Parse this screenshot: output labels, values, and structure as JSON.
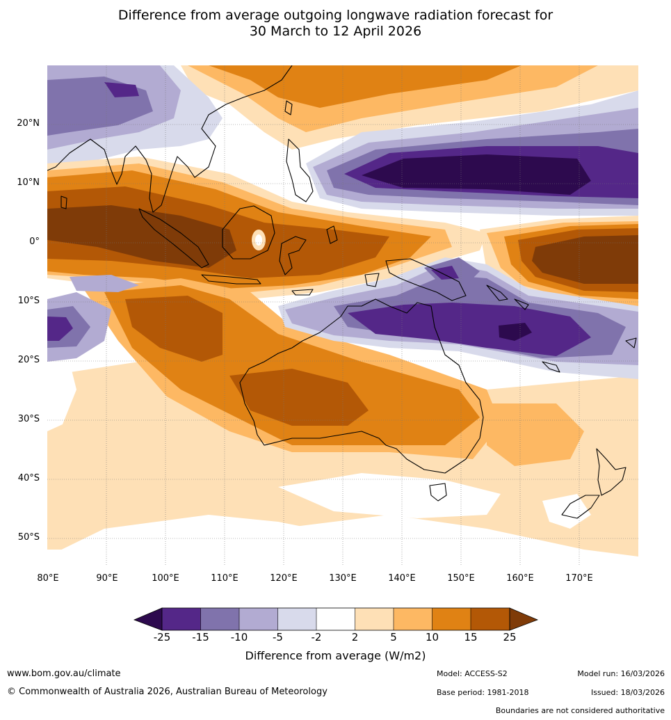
{
  "title": {
    "line1": "Difference from average outgoing longwave radiation forecast for",
    "line2": "30 March to 12 April 2026"
  },
  "axes": {
    "lat_labels": [
      "20°N",
      "10°N",
      "0°",
      "10°S",
      "20°S",
      "30°S",
      "40°S",
      "50°S"
    ],
    "lon_labels": [
      "80°E",
      "90°E",
      "100°E",
      "110°E",
      "120°E",
      "130°E",
      "140°E",
      "150°E",
      "160°E",
      "170°E"
    ]
  },
  "colorbar": {
    "ticks": [
      "-25",
      "-15",
      "-10",
      "-5",
      "-2",
      "2",
      "5",
      "10",
      "15",
      "25"
    ],
    "label": "Difference from average (W/m2)",
    "colors": {
      "below": "#2d0a4e",
      "bins": [
        "#542788",
        "#8073ac",
        "#b2abd2",
        "#d8daeb",
        "#ffffff",
        "#fee0b6",
        "#fdb863",
        "#e08214",
        "#b35806"
      ],
      "above": "#7f3b08"
    }
  },
  "footer": {
    "website": "www.bom.gov.au/climate",
    "copyright": "© Commonwealth of Australia 2026, Australian Bureau of Meteorology",
    "model": "Model: ACCESS-S2",
    "base_period": "Base period: 1981-2018",
    "model_run": "Model run: 16/03/2026",
    "issued": "Issued: 18/03/2026",
    "disclaimer": "Boundaries are not considered authoritative"
  },
  "map_legend_regions": [
    "suppressed-convection-indian-ocean-maritime",
    "enhanced-convection-west-pacific",
    "enhanced-convection-coral-sea"
  ]
}
